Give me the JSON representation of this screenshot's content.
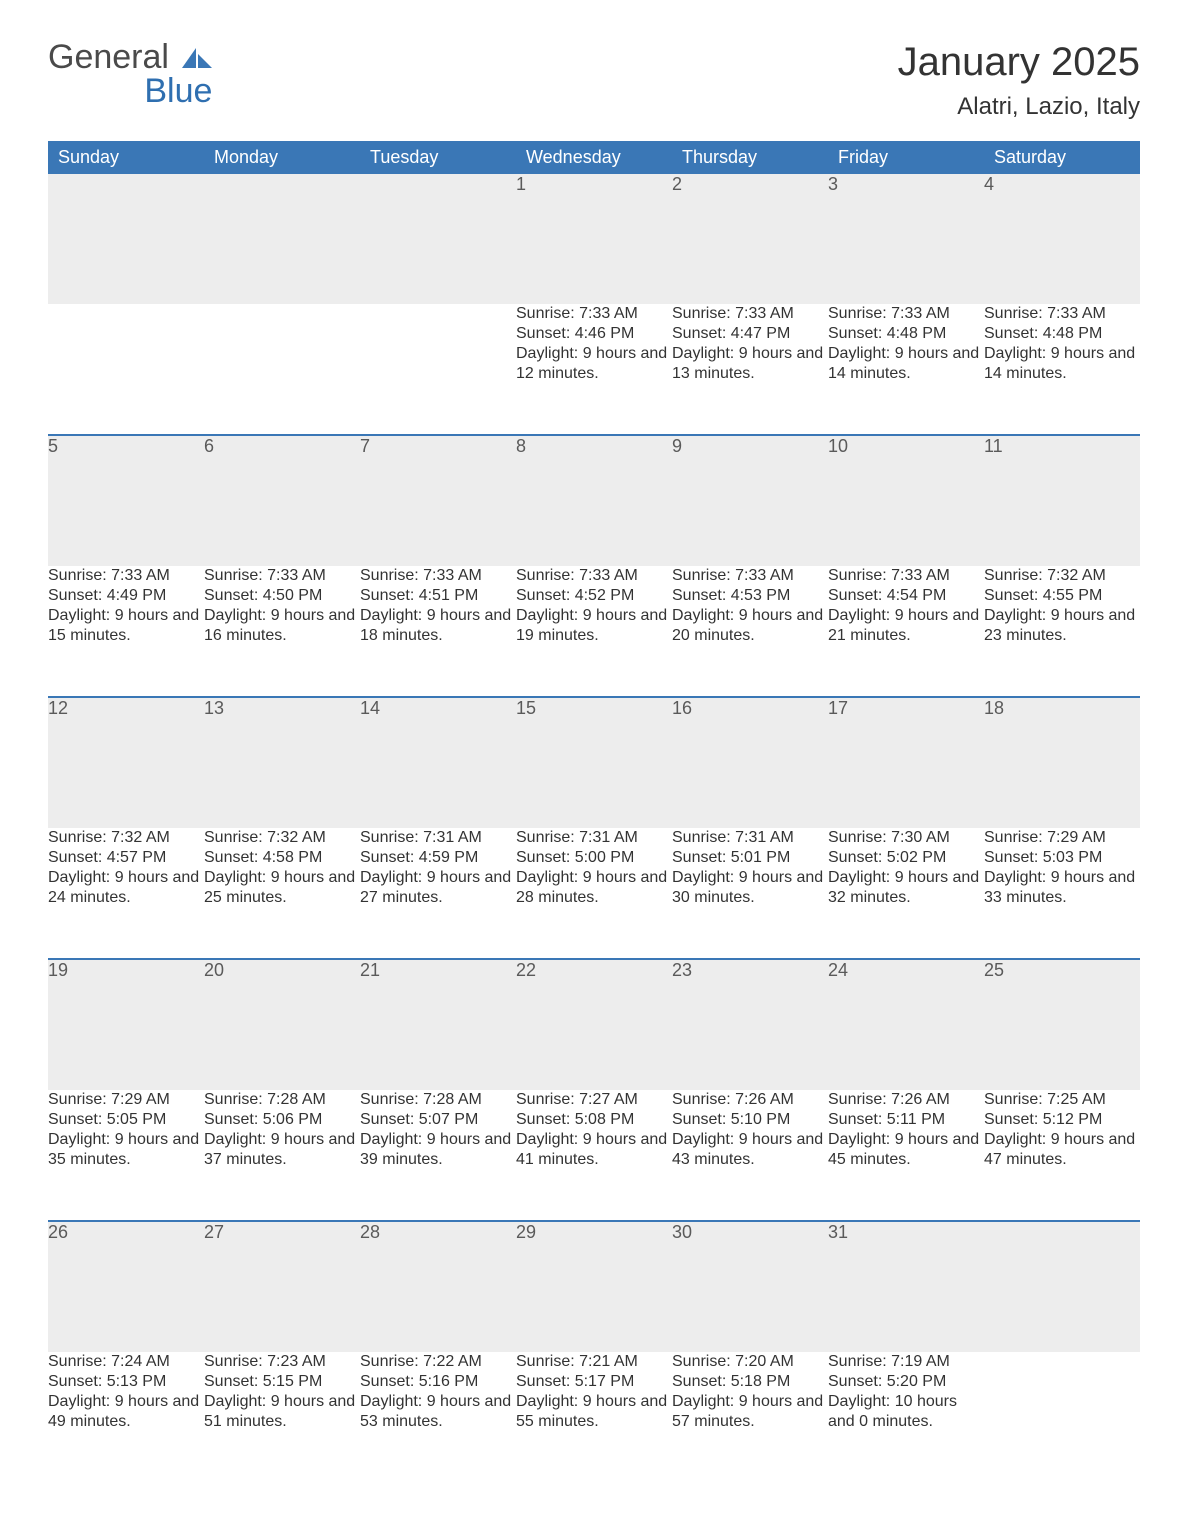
{
  "logo": {
    "general": "General",
    "blue": "Blue",
    "icon_color": "#3a77b6"
  },
  "title": "January 2025",
  "location": "Alatri, Lazio, Italy",
  "theme": {
    "header_bg": "#3a77b6",
    "header_fg": "#ffffff",
    "daynum_bg": "#ededed",
    "week_divider": "#3a77b6",
    "body_text": "#333333",
    "page_bg": "#ffffff"
  },
  "day_headers": [
    "Sunday",
    "Monday",
    "Tuesday",
    "Wednesday",
    "Thursday",
    "Friday",
    "Saturday"
  ],
  "labels": {
    "sunrise": "Sunrise:",
    "sunset": "Sunset:",
    "daylight": "Daylight:"
  },
  "weeks": [
    [
      null,
      null,
      null,
      {
        "n": "1",
        "sunrise": "7:33 AM",
        "sunset": "4:46 PM",
        "daylight": "9 hours and 12 minutes."
      },
      {
        "n": "2",
        "sunrise": "7:33 AM",
        "sunset": "4:47 PM",
        "daylight": "9 hours and 13 minutes."
      },
      {
        "n": "3",
        "sunrise": "7:33 AM",
        "sunset": "4:48 PM",
        "daylight": "9 hours and 14 minutes."
      },
      {
        "n": "4",
        "sunrise": "7:33 AM",
        "sunset": "4:48 PM",
        "daylight": "9 hours and 14 minutes."
      }
    ],
    [
      {
        "n": "5",
        "sunrise": "7:33 AM",
        "sunset": "4:49 PM",
        "daylight": "9 hours and 15 minutes."
      },
      {
        "n": "6",
        "sunrise": "7:33 AM",
        "sunset": "4:50 PM",
        "daylight": "9 hours and 16 minutes."
      },
      {
        "n": "7",
        "sunrise": "7:33 AM",
        "sunset": "4:51 PM",
        "daylight": "9 hours and 18 minutes."
      },
      {
        "n": "8",
        "sunrise": "7:33 AM",
        "sunset": "4:52 PM",
        "daylight": "9 hours and 19 minutes."
      },
      {
        "n": "9",
        "sunrise": "7:33 AM",
        "sunset": "4:53 PM",
        "daylight": "9 hours and 20 minutes."
      },
      {
        "n": "10",
        "sunrise": "7:33 AM",
        "sunset": "4:54 PM",
        "daylight": "9 hours and 21 minutes."
      },
      {
        "n": "11",
        "sunrise": "7:32 AM",
        "sunset": "4:55 PM",
        "daylight": "9 hours and 23 minutes."
      }
    ],
    [
      {
        "n": "12",
        "sunrise": "7:32 AM",
        "sunset": "4:57 PM",
        "daylight": "9 hours and 24 minutes."
      },
      {
        "n": "13",
        "sunrise": "7:32 AM",
        "sunset": "4:58 PM",
        "daylight": "9 hours and 25 minutes."
      },
      {
        "n": "14",
        "sunrise": "7:31 AM",
        "sunset": "4:59 PM",
        "daylight": "9 hours and 27 minutes."
      },
      {
        "n": "15",
        "sunrise": "7:31 AM",
        "sunset": "5:00 PM",
        "daylight": "9 hours and 28 minutes."
      },
      {
        "n": "16",
        "sunrise": "7:31 AM",
        "sunset": "5:01 PM",
        "daylight": "9 hours and 30 minutes."
      },
      {
        "n": "17",
        "sunrise": "7:30 AM",
        "sunset": "5:02 PM",
        "daylight": "9 hours and 32 minutes."
      },
      {
        "n": "18",
        "sunrise": "7:29 AM",
        "sunset": "5:03 PM",
        "daylight": "9 hours and 33 minutes."
      }
    ],
    [
      {
        "n": "19",
        "sunrise": "7:29 AM",
        "sunset": "5:05 PM",
        "daylight": "9 hours and 35 minutes."
      },
      {
        "n": "20",
        "sunrise": "7:28 AM",
        "sunset": "5:06 PM",
        "daylight": "9 hours and 37 minutes."
      },
      {
        "n": "21",
        "sunrise": "7:28 AM",
        "sunset": "5:07 PM",
        "daylight": "9 hours and 39 minutes."
      },
      {
        "n": "22",
        "sunrise": "7:27 AM",
        "sunset": "5:08 PM",
        "daylight": "9 hours and 41 minutes."
      },
      {
        "n": "23",
        "sunrise": "7:26 AM",
        "sunset": "5:10 PM",
        "daylight": "9 hours and 43 minutes."
      },
      {
        "n": "24",
        "sunrise": "7:26 AM",
        "sunset": "5:11 PM",
        "daylight": "9 hours and 45 minutes."
      },
      {
        "n": "25",
        "sunrise": "7:25 AM",
        "sunset": "5:12 PM",
        "daylight": "9 hours and 47 minutes."
      }
    ],
    [
      {
        "n": "26",
        "sunrise": "7:24 AM",
        "sunset": "5:13 PM",
        "daylight": "9 hours and 49 minutes."
      },
      {
        "n": "27",
        "sunrise": "7:23 AM",
        "sunset": "5:15 PM",
        "daylight": "9 hours and 51 minutes."
      },
      {
        "n": "28",
        "sunrise": "7:22 AM",
        "sunset": "5:16 PM",
        "daylight": "9 hours and 53 minutes."
      },
      {
        "n": "29",
        "sunrise": "7:21 AM",
        "sunset": "5:17 PM",
        "daylight": "9 hours and 55 minutes."
      },
      {
        "n": "30",
        "sunrise": "7:20 AM",
        "sunset": "5:18 PM",
        "daylight": "9 hours and 57 minutes."
      },
      {
        "n": "31",
        "sunrise": "7:19 AM",
        "sunset": "5:20 PM",
        "daylight": "10 hours and 0 minutes."
      },
      null
    ]
  ]
}
